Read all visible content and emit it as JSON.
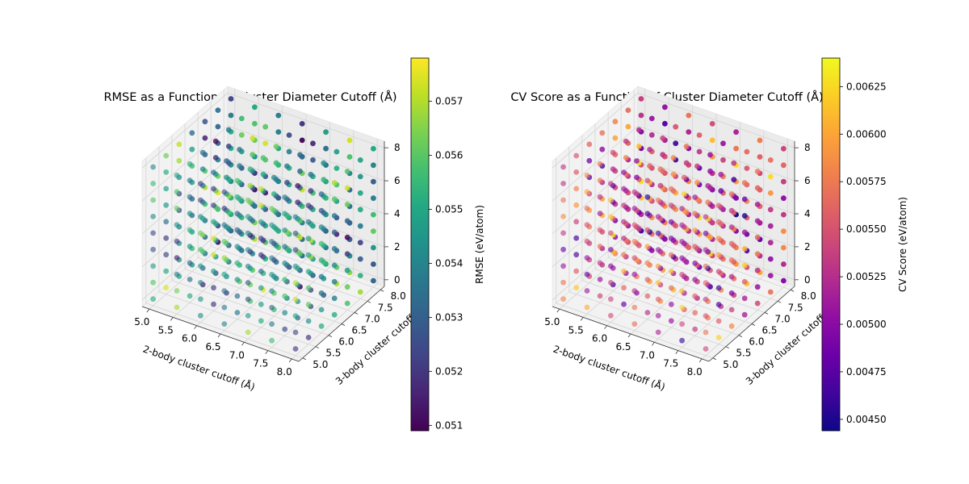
{
  "colors": {
    "viridis": [
      "#440154",
      "#482475",
      "#414487",
      "#355f8d",
      "#2a788e",
      "#21918c",
      "#22a884",
      "#44bf70",
      "#7ad151",
      "#bddf26",
      "#fde725"
    ],
    "plasma": [
      "#0d0887",
      "#41049d",
      "#6a00a8",
      "#8f0da4",
      "#b12a90",
      "#cc4778",
      "#e16462",
      "#f2844b",
      "#fca636",
      "#fcce25",
      "#f0f921"
    ]
  },
  "chart_data": [
    {
      "type": "scatter",
      "projection": "3d",
      "title": "RMSE as a Function of Cluster Diameter Cutoff (Å)",
      "xlabel": "2-body cluster cutoff (Å)",
      "ylabel": "3-body cluster cutoff (Å)",
      "zlabel": "",
      "xlim": [
        4.85,
        8.15
      ],
      "ylim": [
        4.85,
        8.15
      ],
      "zlim": [
        -0.4,
        8.4
      ],
      "xticks": [
        "5.0",
        "5.5",
        "6.0",
        "6.5",
        "7.0",
        "7.5",
        "8.0"
      ],
      "yticks": [
        "5.0",
        "5.5",
        "6.0",
        "6.5",
        "7.0",
        "7.5",
        "8.0"
      ],
      "zticks": [
        "0",
        "2",
        "4",
        "6",
        "8"
      ],
      "x_values": [
        5.0,
        5.5,
        6.0,
        6.5,
        7.0,
        7.5,
        8.0
      ],
      "y_values": [
        5.0,
        5.5,
        6.0,
        6.5,
        7.0,
        7.5,
        8.0
      ],
      "z_values": [
        0,
        1,
        2,
        3,
        4,
        5,
        6,
        7,
        8
      ],
      "colormap": "viridis",
      "colorbar": {
        "label": "RMSE (eV/atom)",
        "min": 0.0509,
        "max": 0.0578,
        "ticks": [
          "0.051",
          "0.052",
          "0.053",
          "0.054",
          "0.055",
          "0.056",
          "0.057"
        ]
      }
    },
    {
      "type": "scatter",
      "projection": "3d",
      "title": "CV Score as a Function of Cluster Diameter Cutoff (Å)",
      "xlabel": "2-body cluster cutoff (Å)",
      "ylabel": "3-body cluster cutoff (Å)",
      "zlabel": "",
      "xlim": [
        4.85,
        8.15
      ],
      "ylim": [
        4.85,
        8.15
      ],
      "zlim": [
        -0.4,
        8.4
      ],
      "xticks": [
        "5.0",
        "5.5",
        "6.0",
        "6.5",
        "7.0",
        "7.5",
        "8.0"
      ],
      "yticks": [
        "5.0",
        "5.5",
        "6.0",
        "6.5",
        "7.0",
        "7.5",
        "8.0"
      ],
      "zticks": [
        "0",
        "2",
        "4",
        "6",
        "8"
      ],
      "x_values": [
        5.0,
        5.5,
        6.0,
        6.5,
        7.0,
        7.5,
        8.0
      ],
      "y_values": [
        5.0,
        5.5,
        6.0,
        6.5,
        7.0,
        7.5,
        8.0
      ],
      "z_values": [
        0,
        1,
        2,
        3,
        4,
        5,
        6,
        7,
        8
      ],
      "colormap": "plasma",
      "colorbar": {
        "label": "CV Score (eV/atom)",
        "min": 0.00444,
        "max": 0.0064,
        "ticks": [
          "0.00450",
          "0.00475",
          "0.00500",
          "0.00525",
          "0.00550",
          "0.00575",
          "0.00600",
          "0.00625"
        ]
      }
    }
  ]
}
